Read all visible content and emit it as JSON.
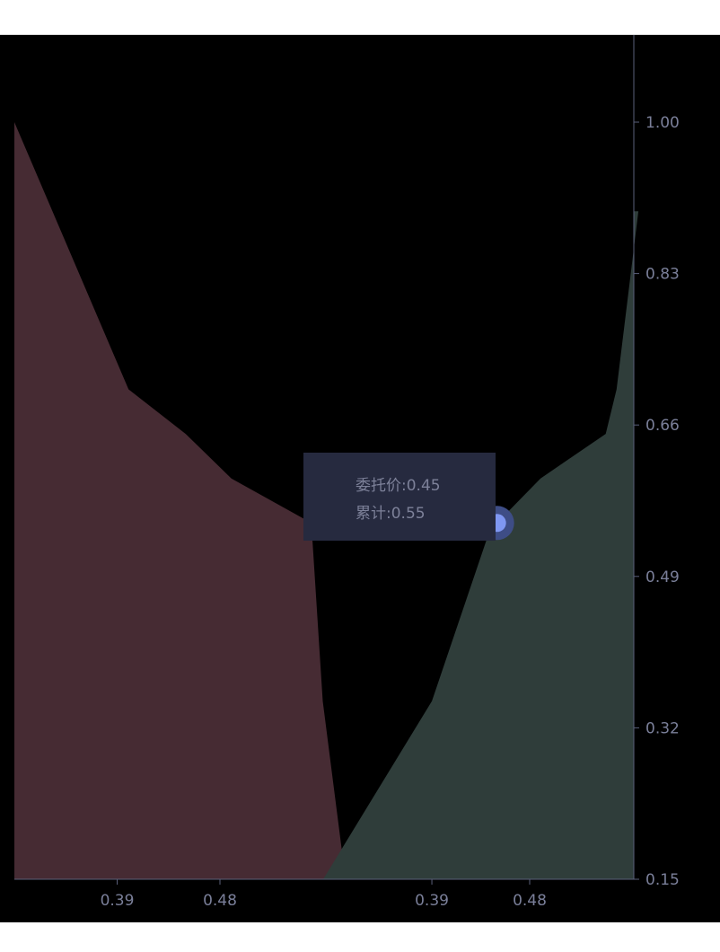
{
  "colors": {
    "background": "#000000",
    "bid_fill": "#462b33",
    "ask_fill": "#2f3d3a",
    "axis": "#5a5f7a",
    "tick_text": "#7a7f99",
    "tooltip_bg": "#262a3f",
    "tooltip_text": "#7d8199",
    "marker": "#7f97f2",
    "marker_halo": "#3e4d86"
  },
  "tooltip": {
    "price_label": "委托价",
    "price_value": "0.45",
    "total_label": "累计",
    "total_value": "0.55"
  },
  "chart_data": {
    "type": "area",
    "title": "",
    "xlabel": "",
    "ylabel": "",
    "y_ticks": [
      "1.00",
      "0.83",
      "0.66",
      "0.49",
      "0.32",
      "0.15"
    ],
    "x_ticks_bids": [
      "0.39",
      "0.48"
    ],
    "x_ticks_asks": [
      "0.39",
      "0.48"
    ],
    "ylim": [
      0.15,
      1.0
    ],
    "grid": false,
    "series": [
      {
        "side": "bid",
        "x": [
          0.3,
          0.4,
          0.45,
          0.49,
          0.56,
          0.57,
          0.59
        ],
        "y": [
          1.0,
          0.7,
          0.65,
          0.6,
          0.55,
          0.35,
          0.15
        ]
      },
      {
        "side": "ask",
        "x": [
          0.29,
          0.39,
          0.44,
          0.45,
          0.49,
          0.55,
          0.56,
          0.58
        ],
        "y": [
          0.15,
          0.35,
          0.53,
          0.55,
          0.6,
          0.65,
          0.7,
          0.9
        ]
      }
    ],
    "highlight": {
      "side": "ask",
      "x": 0.45,
      "y": 0.55
    }
  }
}
